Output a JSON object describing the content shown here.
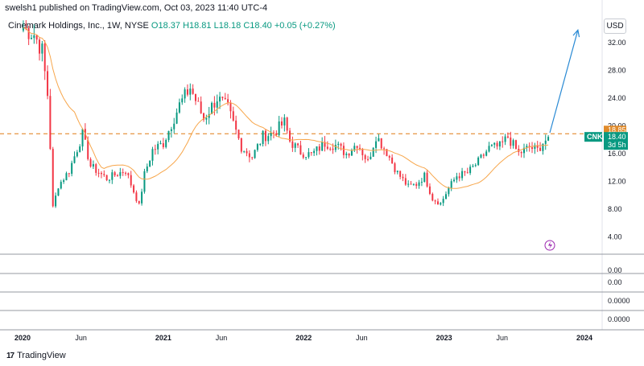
{
  "header": {
    "published": "swelsh1 published on TradingView.com, Oct 03, 2023 11:40 UTC-4"
  },
  "legend": {
    "symbol": "Cinemark Holdings, Inc., 1W, NYSE",
    "open": "O18.37",
    "high": "H18.81",
    "low": "L18.18",
    "close": "C18.40",
    "change": "+0.05 (+0.27%)"
  },
  "currency_button": "USD",
  "footer": {
    "brand": "TradingView",
    "logo_mark": "17"
  },
  "colors": {
    "up": "#089981",
    "down": "#f23645",
    "ma": "#f7a64b",
    "resistance": "#e07a12",
    "arrow": "#2a8ad4",
    "price_tag": "#089981",
    "level_tag": "#e08a2a"
  },
  "chart_data": [
    {
      "type": "candlestick",
      "title": "Cinemark Holdings, Inc., 1W, NYSE",
      "interval": "1W",
      "ylim": [
        1.5,
        36.5
      ],
      "yticks": [
        4,
        8,
        12,
        16,
        20,
        24,
        28,
        32
      ],
      "ytick_labels": [
        "4.00",
        "8.00",
        "12.00",
        "16.00",
        "20.00",
        "24.00",
        "28.00",
        "32.00"
      ],
      "x_labels": [
        "2020",
        "Jun",
        "2021",
        "Jun",
        "2022",
        "Jun",
        "2023",
        "Jun",
        "2024"
      ],
      "x_label_dates": [
        "2020-01-01",
        "2020-06-01",
        "2021-01-01",
        "2021-06-01",
        "2022-01-01",
        "2022-06-01",
        "2023-01-01",
        "2023-06-01",
        "2024-01-01"
      ],
      "last_price": {
        "label": "CNK",
        "value": "18.40",
        "countdown": "3d 5h"
      },
      "resistance_level": {
        "value": 18.85,
        "label": "18.85",
        "style": "dashed"
      },
      "moving_average": "orange line (period not shown)",
      "close_keypoints": [
        [
          "2020-01-03",
          34.1
        ],
        [
          "2020-01-31",
          33.2
        ],
        [
          "2020-02-21",
          30.8
        ],
        [
          "2020-03-06",
          24.5
        ],
        [
          "2020-03-13",
          17.0
        ],
        [
          "2020-03-20",
          8.2
        ],
        [
          "2020-04-03",
          11.4
        ],
        [
          "2020-05-01",
          13.5
        ],
        [
          "2020-06-05",
          18.8
        ],
        [
          "2020-06-26",
          14.2
        ],
        [
          "2020-08-07",
          12.4
        ],
        [
          "2020-09-25",
          13.6
        ],
        [
          "2020-10-30",
          8.5
        ],
        [
          "2020-11-13",
          13.0
        ],
        [
          "2020-12-04",
          16.5
        ],
        [
          "2021-01-01",
          17.5
        ],
        [
          "2021-02-12",
          23.0
        ],
        [
          "2021-03-12",
          25.5
        ],
        [
          "2021-04-16",
          21.0
        ],
        [
          "2021-05-21",
          24.0
        ],
        [
          "2021-06-18",
          22.5
        ],
        [
          "2021-07-23",
          17.0
        ],
        [
          "2021-08-20",
          15.5
        ],
        [
          "2021-09-17",
          18.5
        ],
        [
          "2021-10-15",
          19.0
        ],
        [
          "2021-11-12",
          20.5
        ],
        [
          "2021-11-26",
          17.8
        ],
        [
          "2021-12-24",
          16.2
        ],
        [
          "2022-01-21",
          15.8
        ],
        [
          "2022-02-25",
          17.5
        ],
        [
          "2022-03-25",
          17.2
        ],
        [
          "2022-04-22",
          16.0
        ],
        [
          "2022-05-20",
          17.5
        ],
        [
          "2022-06-17",
          14.8
        ],
        [
          "2022-07-08",
          18.6
        ],
        [
          "2022-08-05",
          16.2
        ],
        [
          "2022-09-02",
          13.2
        ],
        [
          "2022-09-30",
          11.2
        ],
        [
          "2022-10-21",
          11.6
        ],
        [
          "2022-11-11",
          12.8
        ],
        [
          "2022-12-02",
          9.5
        ],
        [
          "2022-12-23",
          8.8
        ],
        [
          "2023-01-13",
          11.0
        ],
        [
          "2023-02-03",
          12.8
        ],
        [
          "2023-03-03",
          13.2
        ],
        [
          "2023-03-31",
          14.8
        ],
        [
          "2023-04-28",
          16.8
        ],
        [
          "2023-05-26",
          17.0
        ],
        [
          "2023-06-16",
          18.4
        ],
        [
          "2023-07-14",
          16.0
        ],
        [
          "2023-08-11",
          16.9
        ],
        [
          "2023-09-01",
          16.5
        ],
        [
          "2023-09-15",
          17.6
        ],
        [
          "2023-10-03",
          18.4
        ]
      ],
      "projection": {
        "from": [
          "2023-10-03",
          19.0
        ],
        "to": [
          "2023-12-15",
          33.8
        ]
      },
      "empty_indicator_panes": [
        "0.00",
        "0.00",
        "0.0000",
        "0.0000"
      ]
    }
  ]
}
